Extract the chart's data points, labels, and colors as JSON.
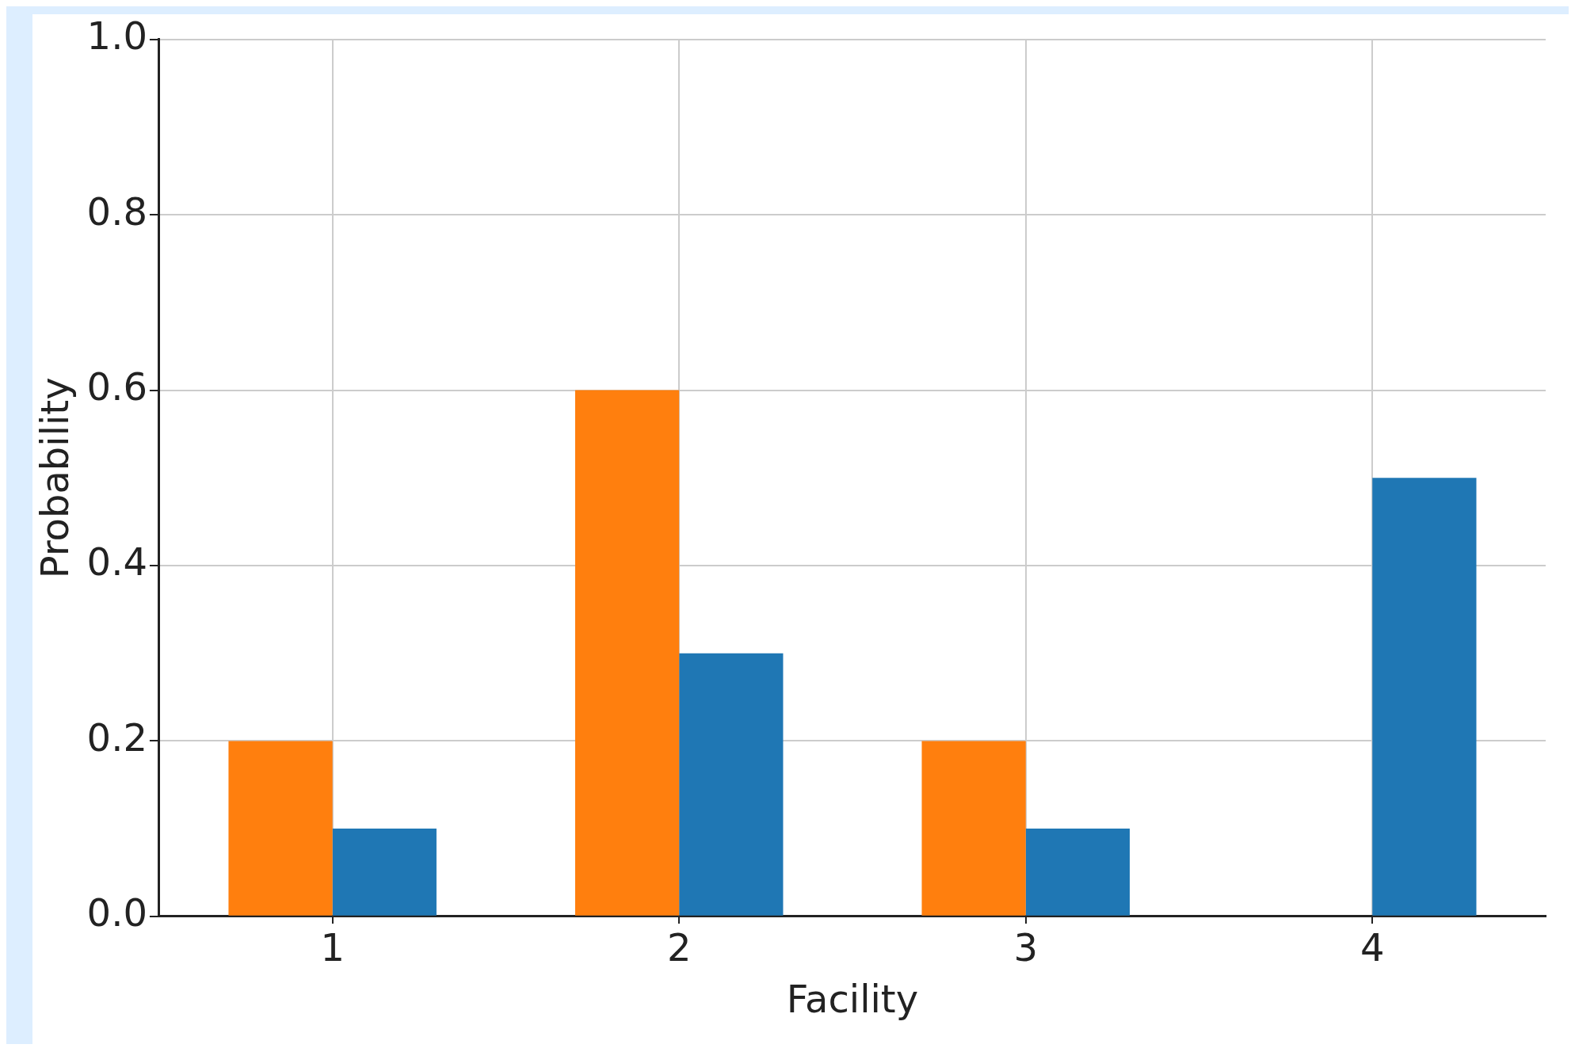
{
  "chart_data": {
    "type": "bar",
    "xlabel": "Facility",
    "ylabel": "Probability",
    "categories": [
      "1",
      "2",
      "3",
      "4"
    ],
    "series": [
      {
        "color": "#ff7f0e",
        "values": [
          0.2,
          0.6,
          0.2,
          0
        ]
      },
      {
        "color": "#1f77b4",
        "values": [
          0.1,
          0.3,
          0.1,
          0.5
        ]
      }
    ],
    "ylim": [
      0,
      1
    ],
    "yticks": [
      {
        "value": 0,
        "label": "0.0"
      },
      {
        "value": 0.2,
        "label": "0.2"
      },
      {
        "value": 0.4,
        "label": "0.4"
      },
      {
        "value": 0.6,
        "label": "0.6"
      },
      {
        "value": 0.8,
        "label": "0.8"
      },
      {
        "value": 1,
        "label": "1.0"
      }
    ],
    "grid": true,
    "legend": false
  }
}
